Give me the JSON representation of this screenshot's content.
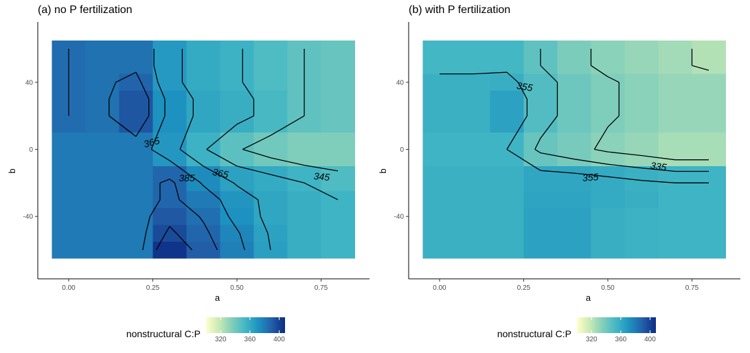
{
  "palette": [
    "#ffffcc",
    "#c7e9b4",
    "#7fcdbb",
    "#41b6c4",
    "#1d91c0",
    "#225ea8",
    "#0c2c84"
  ],
  "chart_data": [
    {
      "type": "heatmap",
      "title": "(a) no P fertilization",
      "xlabel": "a",
      "ylabel": "b",
      "x": [
        0,
        0.1,
        0.2,
        0.3,
        0.4,
        0.5,
        0.6,
        0.7,
        0.8
      ],
      "y": [
        60,
        50,
        40,
        30,
        20,
        0,
        -20,
        -30,
        -40,
        -50,
        -60
      ],
      "x_ticks": [
        0,
        0.25,
        0.5,
        0.75
      ],
      "x_tick_labels": [
        "0.00",
        "0.25",
        "0.50",
        "0.75"
      ],
      "y_ticks": [
        -40,
        0,
        40
      ],
      "y_tick_labels": [
        "-40",
        "0",
        "40"
      ],
      "z": [
        [
          385,
          383,
          383,
          368,
          360,
          356,
          350,
          345,
          343
        ],
        [
          385,
          383,
          383,
          368,
          360,
          356,
          350,
          345,
          343
        ],
        [
          385,
          383,
          388,
          368,
          360,
          356,
          350,
          345,
          343
        ],
        [
          385,
          383,
          393,
          372,
          362,
          358,
          352,
          345,
          343
        ],
        [
          385,
          383,
          393,
          372,
          362,
          358,
          352,
          345,
          343
        ],
        [
          380,
          380,
          380,
          369,
          356,
          346,
          340,
          336,
          336
        ],
        [
          380,
          380,
          380,
          387,
          374,
          364,
          360,
          355,
          350
        ],
        [
          380,
          380,
          380,
          387,
          380,
          370,
          362,
          358,
          355
        ],
        [
          380,
          380,
          380,
          392,
          384,
          372,
          362,
          358,
          355
        ],
        [
          380,
          380,
          380,
          397,
          387,
          376,
          364,
          358,
          355
        ],
        [
          380,
          380,
          380,
          405,
          390,
          378,
          365,
          358,
          355
        ]
      ],
      "contour_labels": [
        "365",
        "385",
        "365",
        "345"
      ],
      "legend": {
        "title": "nonstructural C:P",
        "ticks": [
          320,
          360,
          400
        ],
        "range": [
          300,
          408
        ]
      }
    },
    {
      "type": "heatmap",
      "title": "(b) with P fertilization",
      "xlabel": "a",
      "ylabel": "b",
      "x": [
        0,
        0.1,
        0.2,
        0.3,
        0.4,
        0.5,
        0.6,
        0.7,
        0.8
      ],
      "y": [
        60,
        50,
        40,
        30,
        20,
        0,
        -20,
        -30,
        -40,
        -50,
        -60
      ],
      "x_ticks": [
        0,
        0.25,
        0.5,
        0.75
      ],
      "x_tick_labels": [
        "0.00",
        "0.25",
        "0.50",
        "0.75"
      ],
      "y_ticks": [
        -40,
        0,
        40
      ],
      "y_tick_labels": [
        "-40",
        "0",
        "40"
      ],
      "z": [
        [
          353,
          353,
          353,
          345,
          337,
          333,
          330,
          327,
          323
        ],
        [
          353,
          353,
          353,
          345,
          337,
          333,
          330,
          327,
          323
        ],
        [
          357,
          357,
          358,
          349,
          341,
          336,
          333,
          330,
          330
        ],
        [
          357,
          357,
          364,
          349,
          341,
          336,
          333,
          330,
          330
        ],
        [
          357,
          357,
          364,
          349,
          341,
          336,
          333,
          330,
          330
        ],
        [
          355,
          355,
          355,
          343,
          338,
          333,
          330,
          326,
          326
        ],
        [
          357,
          357,
          357,
          362,
          362,
          360,
          357,
          355,
          355
        ],
        [
          357,
          357,
          357,
          363,
          363,
          360,
          358,
          355,
          355
        ],
        [
          357,
          357,
          357,
          364,
          364,
          358,
          356,
          355,
          355
        ],
        [
          357,
          357,
          357,
          364,
          364,
          358,
          356,
          355,
          355
        ],
        [
          357,
          357,
          357,
          364,
          364,
          358,
          356,
          355,
          355
        ]
      ],
      "contour_labels": [
        "355",
        "335",
        "355"
      ],
      "legend": {
        "title": "nonstructural C:P",
        "ticks": [
          320,
          360,
          400
        ],
        "range": [
          300,
          408
        ]
      }
    }
  ]
}
